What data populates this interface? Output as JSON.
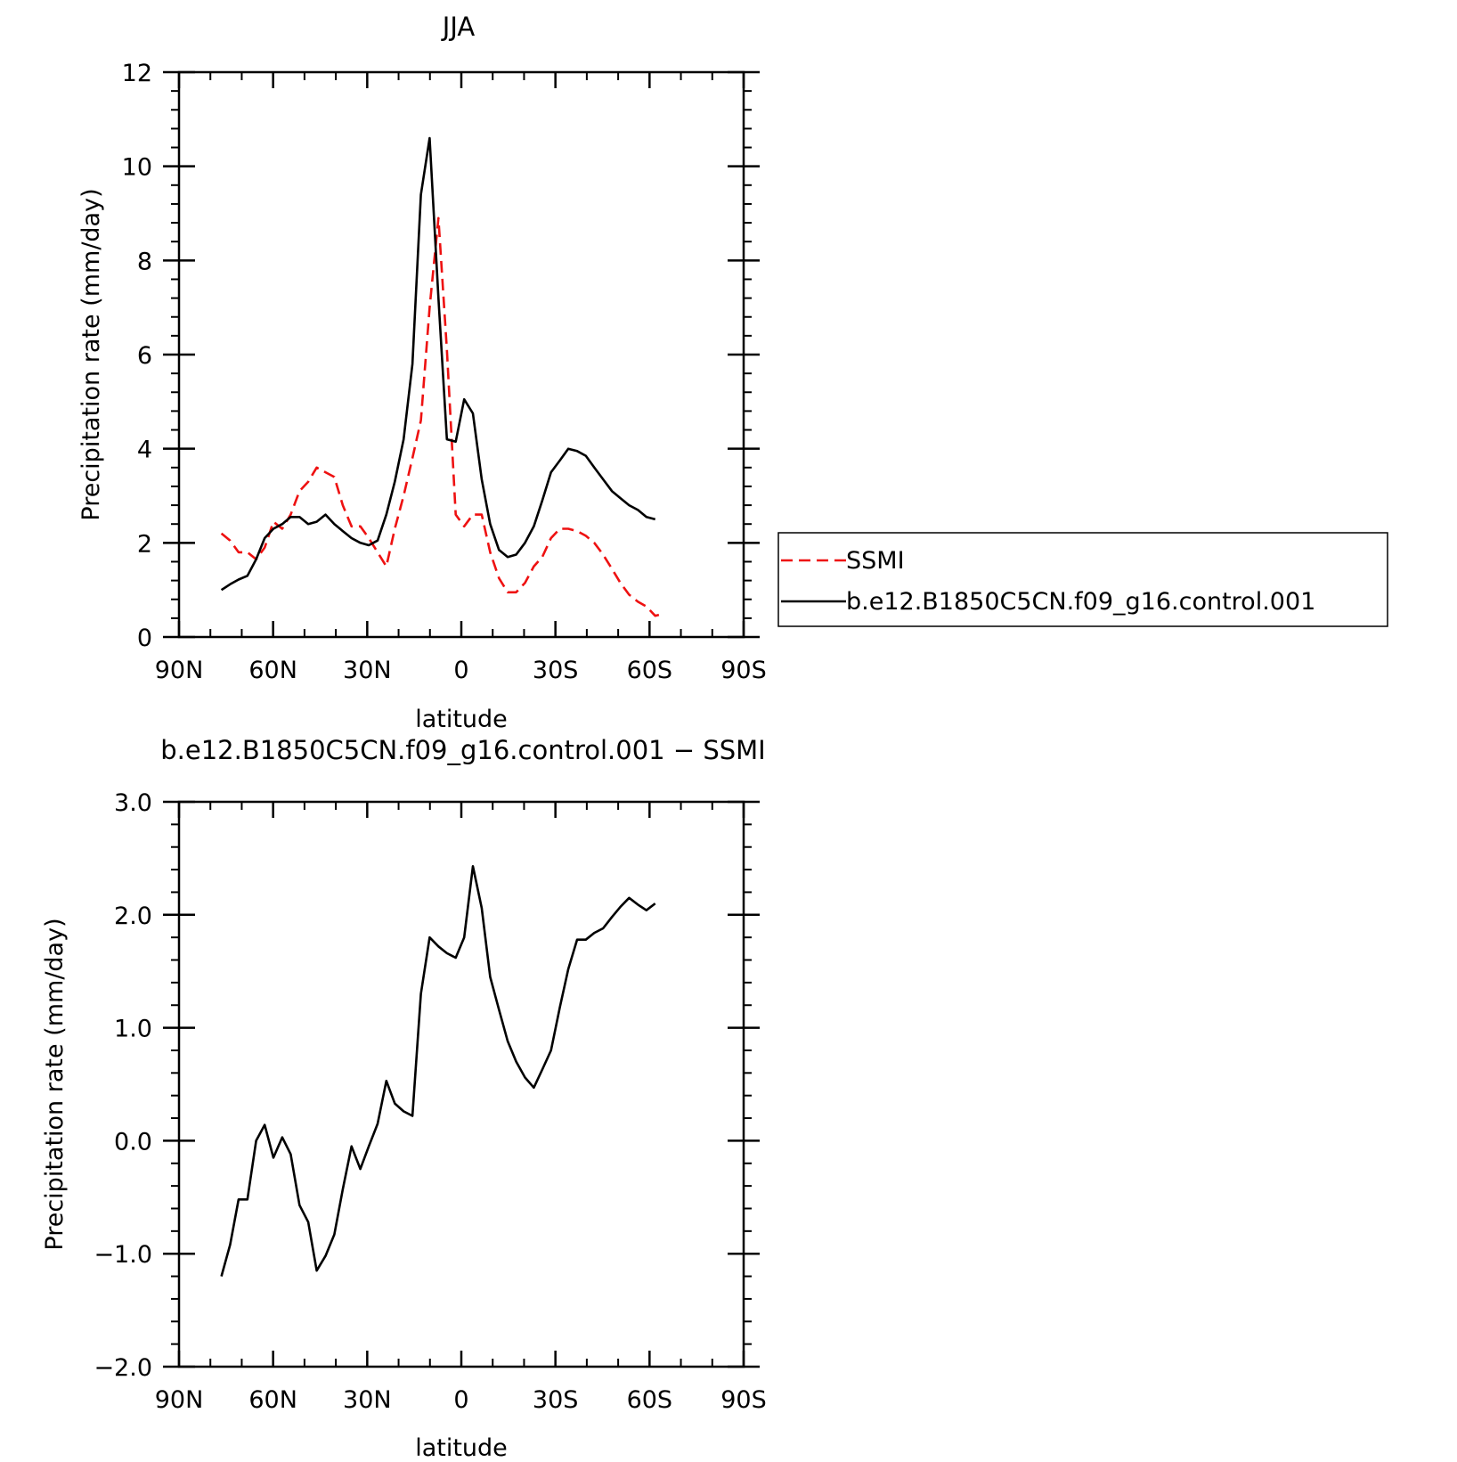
{
  "chart_data": [
    {
      "type": "line",
      "title": "JJA",
      "xlabel": "latitude",
      "ylabel": "Precipitation rate (mm/day)",
      "xlim": [
        90,
        -90
      ],
      "ylim": [
        0,
        12
      ],
      "xticks": [
        {
          "value": 90,
          "label": "90N"
        },
        {
          "value": 60,
          "label": "60N"
        },
        {
          "value": 30,
          "label": "30N"
        },
        {
          "value": 0,
          "label": "0"
        },
        {
          "value": -30,
          "label": "30S"
        },
        {
          "value": -60,
          "label": "60S"
        },
        {
          "value": -90,
          "label": "90S"
        }
      ],
      "yticks": [
        {
          "value": 0,
          "label": "0"
        },
        {
          "value": 2,
          "label": "2"
        },
        {
          "value": 4,
          "label": "4"
        },
        {
          "value": 6,
          "label": "6"
        },
        {
          "value": 8,
          "label": "8"
        },
        {
          "value": 10,
          "label": "10"
        },
        {
          "value": 12,
          "label": "12"
        }
      ],
      "grid": false,
      "legend_position": "right",
      "series": [
        {
          "name": "SSMI",
          "color": "#ee1111",
          "dash": "dashed",
          "x": [
            76.5,
            73.7,
            71.0,
            68.2,
            65.4,
            62.7,
            59.9,
            57.1,
            54.4,
            51.6,
            48.8,
            46.1,
            43.3,
            40.5,
            37.8,
            35.0,
            32.2,
            29.5,
            26.7,
            23.9,
            21.2,
            18.4,
            15.6,
            12.9,
            10.1,
            7.3,
            4.6,
            1.8,
            -0.9,
            -3.7,
            -6.5,
            -9.2,
            -12.0,
            -14.8,
            -17.5,
            -20.3,
            -23.1,
            -25.8,
            -28.6,
            -31.4,
            -34.1,
            -36.9,
            -39.7,
            -42.4,
            -45.2,
            -48.0,
            -50.7,
            -53.5,
            -56.3,
            -59.0,
            -61.8,
            -64.6
          ],
          "y": [
            2.2,
            2.05,
            1.8,
            1.8,
            1.65,
            1.9,
            2.45,
            2.3,
            2.6,
            3.1,
            3.3,
            3.6,
            3.5,
            3.4,
            2.8,
            2.35,
            2.35,
            2.1,
            1.8,
            1.5,
            2.3,
            3.0,
            3.8,
            4.6,
            7.0,
            8.9,
            6.1,
            2.6,
            2.35,
            2.6,
            2.6,
            1.8,
            1.25,
            0.95,
            0.95,
            1.15,
            1.5,
            1.7,
            2.1,
            2.3,
            2.3,
            2.25,
            2.15,
            2.0,
            1.75,
            1.45,
            1.15,
            0.9,
            0.75,
            0.65,
            0.45,
            0.5
          ]
        },
        {
          "name": "b.e12.B1850C5CN.f09_g16.control.001",
          "color": "#000000",
          "dash": "solid",
          "x": [
            76.5,
            73.7,
            71.0,
            68.2,
            65.4,
            62.7,
            59.9,
            57.1,
            54.4,
            51.6,
            48.8,
            46.1,
            43.3,
            40.5,
            37.8,
            35.0,
            32.2,
            29.5,
            26.7,
            23.9,
            21.2,
            18.4,
            15.6,
            12.9,
            10.1,
            7.3,
            4.6,
            1.8,
            -0.9,
            -3.7,
            -6.5,
            -9.2,
            -12.0,
            -14.8,
            -17.5,
            -20.3,
            -23.1,
            -25.8,
            -28.6,
            -31.4,
            -34.1,
            -36.9,
            -39.7,
            -42.4,
            -45.2,
            -48.0,
            -50.7,
            -53.5,
            -56.3,
            -59.0,
            -61.8
          ],
          "y": [
            1.0,
            1.12,
            1.22,
            1.3,
            1.65,
            2.1,
            2.3,
            2.4,
            2.55,
            2.55,
            2.4,
            2.45,
            2.6,
            2.4,
            2.25,
            2.1,
            2.0,
            1.95,
            2.05,
            2.6,
            3.3,
            4.2,
            5.8,
            9.4,
            10.6,
            7.2,
            4.2,
            4.15,
            5.05,
            4.75,
            3.35,
            2.4,
            1.85,
            1.7,
            1.75,
            2.0,
            2.35,
            2.9,
            3.5,
            3.75,
            4.0,
            3.95,
            3.85,
            3.6,
            3.35,
            3.1,
            2.95,
            2.8,
            2.7,
            2.55,
            2.5
          ]
        }
      ]
    },
    {
      "type": "line",
      "title": "b.e12.B1850C5CN.f09_g16.control.001 − SSMI",
      "xlabel": "latitude",
      "ylabel": "Precipitation rate (mm/day)",
      "xlim": [
        90,
        -90
      ],
      "ylim": [
        -2.0,
        3.0
      ],
      "xticks": [
        {
          "value": 90,
          "label": "90N"
        },
        {
          "value": 60,
          "label": "60N"
        },
        {
          "value": 30,
          "label": "30N"
        },
        {
          "value": 0,
          "label": "0"
        },
        {
          "value": -30,
          "label": "30S"
        },
        {
          "value": -60,
          "label": "60S"
        },
        {
          "value": -90,
          "label": "90S"
        }
      ],
      "yticks": [
        {
          "value": -2.0,
          "label": "−2.0"
        },
        {
          "value": -1.0,
          "label": "−1.0"
        },
        {
          "value": 0.0,
          "label": "0.0"
        },
        {
          "value": 1.0,
          "label": "1.0"
        },
        {
          "value": 2.0,
          "label": "2.0"
        },
        {
          "value": 3.0,
          "label": "3.0"
        }
      ],
      "grid": false,
      "series": [
        {
          "color": "#000000",
          "dash": "solid",
          "x": [
            76.5,
            73.7,
            71.0,
            68.2,
            65.4,
            62.7,
            59.9,
            57.1,
            54.4,
            51.6,
            48.8,
            46.1,
            43.3,
            40.5,
            37.8,
            35.0,
            32.2,
            29.5,
            26.7,
            23.9,
            21.2,
            18.4,
            15.6,
            12.9,
            10.1,
            7.3,
            4.6,
            1.8,
            -0.9,
            -3.7,
            -6.5,
            -9.2,
            -12.0,
            -14.8,
            -17.5,
            -20.3,
            -23.1,
            -25.8,
            -28.6,
            -31.4,
            -34.1,
            -36.9,
            -39.7,
            -42.4,
            -45.2,
            -48.0,
            -50.7,
            -53.5,
            -56.3,
            -59.0,
            -61.8
          ],
          "y": [
            -1.2,
            -0.92,
            -0.52,
            -0.52,
            0.0,
            0.14,
            -0.15,
            0.03,
            -0.12,
            -0.57,
            -0.72,
            -1.15,
            -1.02,
            -0.83,
            -0.43,
            -0.05,
            -0.25,
            -0.05,
            0.15,
            0.53,
            0.33,
            0.26,
            0.22,
            1.3,
            1.8,
            1.72,
            1.66,
            1.62,
            1.8,
            2.43,
            2.06,
            1.45,
            1.16,
            0.88,
            0.7,
            0.56,
            0.47,
            0.63,
            0.8,
            1.18,
            1.52,
            1.78,
            1.78,
            1.84,
            1.88,
            1.98,
            2.07,
            2.15,
            2.09,
            2.04,
            2.1
          ]
        }
      ]
    }
  ]
}
